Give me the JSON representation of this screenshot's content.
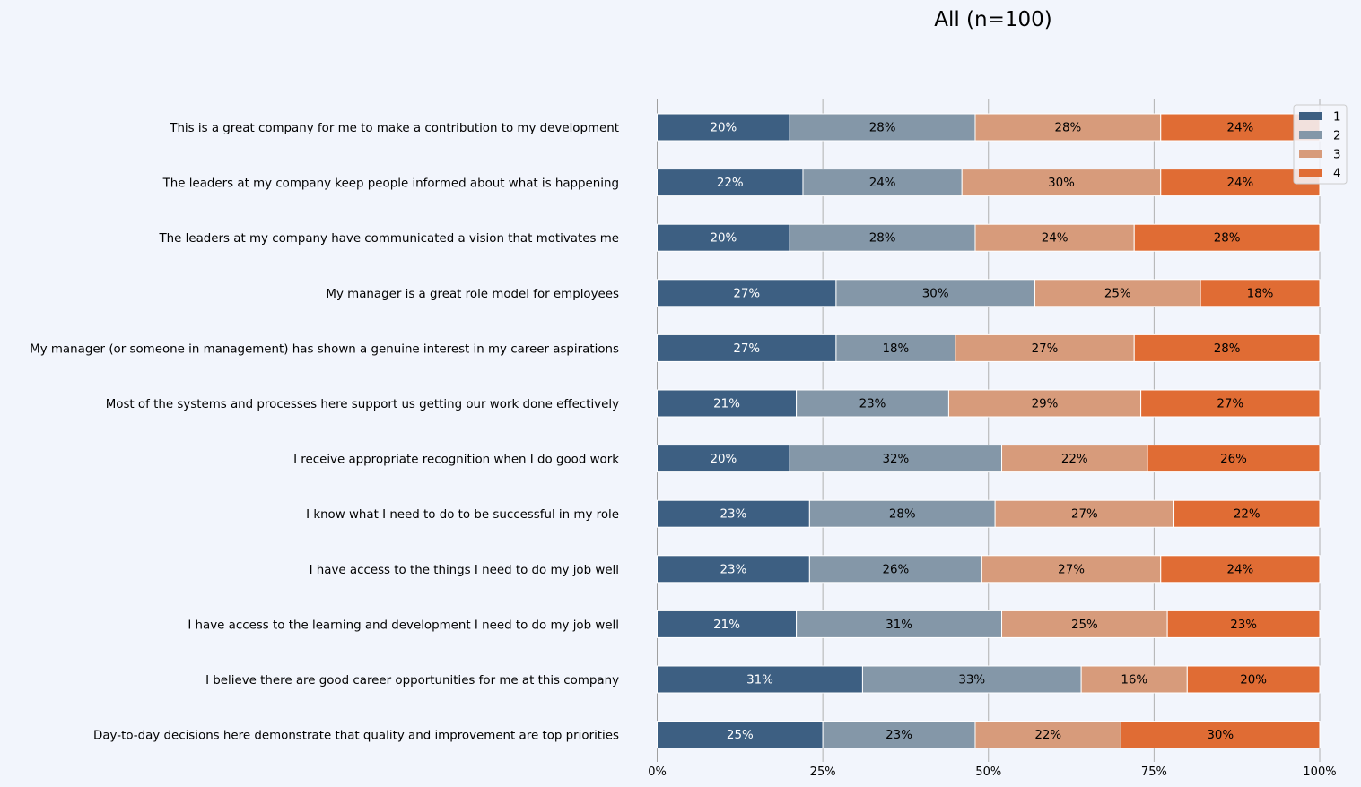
{
  "chart_data": {
    "type": "bar",
    "orientation": "horizontal-stacked-100",
    "title": "All (n=100)",
    "xlabel": "",
    "ylabel": "",
    "xlim": [
      0,
      100
    ],
    "x_ticks": [
      "0%",
      "25%",
      "50%",
      "75%",
      "100%"
    ],
    "x_tick_values": [
      0,
      25,
      50,
      75,
      100
    ],
    "grid": "vertical",
    "legend_position": "top-right",
    "categories": [
      "This is a great company for me to make a contribution to my development",
      "The leaders at my company keep people informed about what is happening",
      "The leaders at my company have communicated a vision that motivates me",
      "My manager is a great role model for employees",
      "My manager (or someone in management) has shown a genuine interest in my career aspirations",
      "Most of the systems and processes here support us getting our work done effectively",
      "I receive appropriate recognition when I do good work",
      "I know what I need to do to be successful in my role",
      "I have access to the things I need to do my job well",
      "I have access to the learning and development I need to do my job well",
      "I believe there are good career opportunities for me at this company",
      "Day-to-day decisions here demonstrate that quality and improvement are top priorities"
    ],
    "series": [
      {
        "name": "1",
        "color": "#3d5f82",
        "label_color": "#ffffff",
        "values": [
          20,
          22,
          20,
          27,
          27,
          21,
          20,
          23,
          23,
          21,
          31,
          25
        ]
      },
      {
        "name": "2",
        "color": "#8497a8",
        "label_color": "#000000",
        "values": [
          28,
          24,
          28,
          30,
          18,
          23,
          32,
          28,
          26,
          31,
          33,
          23
        ]
      },
      {
        "name": "3",
        "color": "#d79b7b",
        "label_color": "#000000",
        "values": [
          28,
          30,
          24,
          25,
          27,
          29,
          22,
          27,
          27,
          25,
          16,
          22
        ]
      },
      {
        "name": "4",
        "color": "#e06c34",
        "label_color": "#000000",
        "values": [
          24,
          24,
          28,
          18,
          28,
          27,
          26,
          22,
          24,
          23,
          20,
          30
        ]
      }
    ]
  }
}
